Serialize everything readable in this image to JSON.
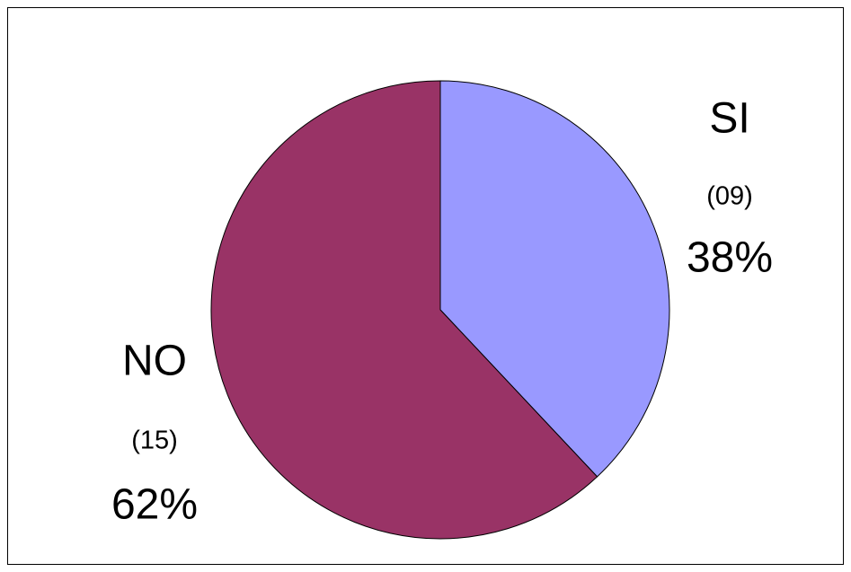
{
  "chart_data": {
    "type": "pie",
    "categories": [
      "SI",
      "NO"
    ],
    "values": [
      38,
      62
    ],
    "value_labels": [
      "38%",
      "62%"
    ],
    "counts": [
      9,
      15
    ],
    "count_labels": [
      "(09)",
      "(15)"
    ],
    "colors": [
      "#9999ff",
      "#993366"
    ]
  }
}
